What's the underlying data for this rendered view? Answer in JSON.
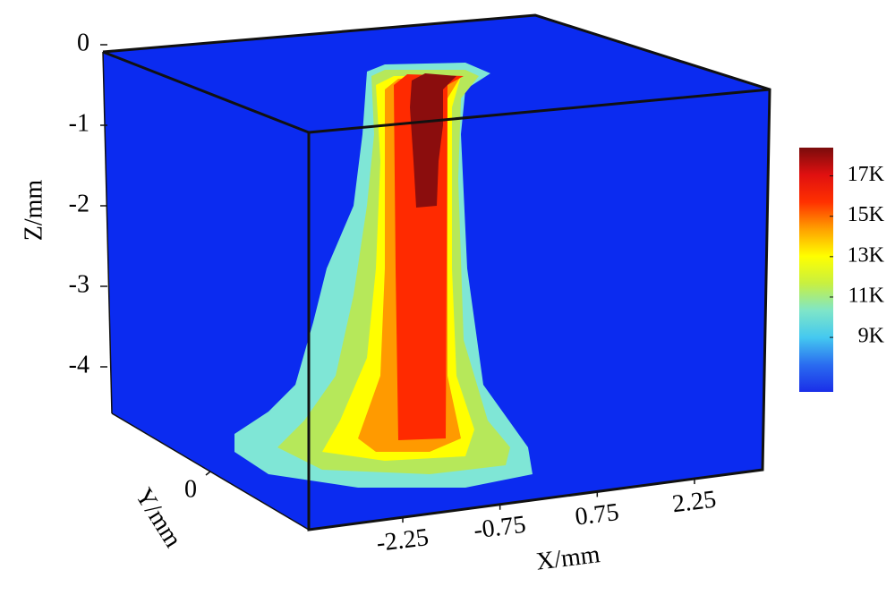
{
  "chart_data": {
    "type": "contour3d",
    "zlabel": "Z/mm",
    "ylabel": "Y/mm",
    "xlabel": "X/mm",
    "zlim": [
      -4.6,
      0
    ],
    "zticks": [
      0,
      -1,
      -2,
      -3,
      -4
    ],
    "xlim": [
      -3.7,
      3.3
    ],
    "xticks": [
      -2.25,
      -0.75,
      0.75,
      2.25
    ],
    "ylim": [
      -1.5,
      1.5
    ],
    "yticks": [
      0
    ],
    "clim": [
      6300,
      18400
    ],
    "colorbar_ticks": [
      {
        "value": 17000,
        "label": "17K"
      },
      {
        "value": 15000,
        "label": "15K"
      },
      {
        "value": 13000,
        "label": "13K"
      },
      {
        "value": 11000,
        "label": "11K"
      },
      {
        "value": 9000,
        "label": "9K"
      }
    ],
    "colormap": [
      "#1a2ee8",
      "#2a6cf0",
      "#44c8f0",
      "#7fe6c8",
      "#c8f040",
      "#ffff00",
      "#ffa000",
      "#ff3000",
      "#e01010",
      "#7a0c0c"
    ]
  }
}
